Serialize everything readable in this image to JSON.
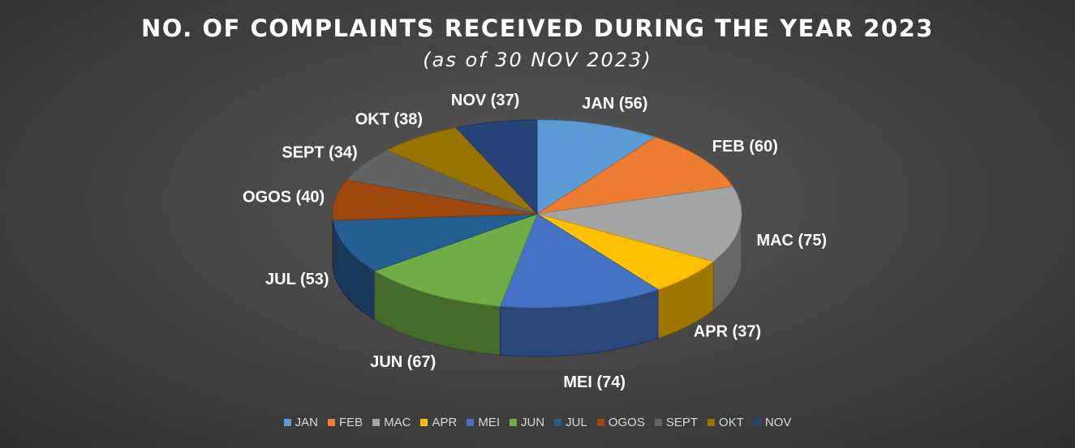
{
  "chart_data": {
    "type": "pie",
    "style": "3d",
    "title": "NO. OF COMPLAINTS RECEIVED DURING THE YEAR 2023",
    "subtitle": "(as of 30 NOV 2023)",
    "categories": [
      "JAN",
      "FEB",
      "MAC",
      "APR",
      "MEI",
      "JUN",
      "JUL",
      "OGOS",
      "SEPT",
      "OKT",
      "NOV"
    ],
    "values": [
      56,
      60,
      75,
      37,
      74,
      67,
      53,
      40,
      34,
      38,
      37
    ],
    "data_labels": [
      "JAN (56)",
      "FEB (60)",
      "MAC (75)",
      "APR (37)",
      "MEI (74)",
      "JUN (67)",
      "JUL (53)",
      "OGOS (40)",
      "SEPT (34)",
      "OKT (38)",
      "NOV (37)"
    ],
    "colors": [
      "#5b9bd5",
      "#ed7d31",
      "#a5a5a5",
      "#ffc000",
      "#4472c4",
      "#70ad47",
      "#255e91",
      "#9e480e",
      "#636363",
      "#997300",
      "#264478"
    ],
    "legend_position": "bottom"
  }
}
